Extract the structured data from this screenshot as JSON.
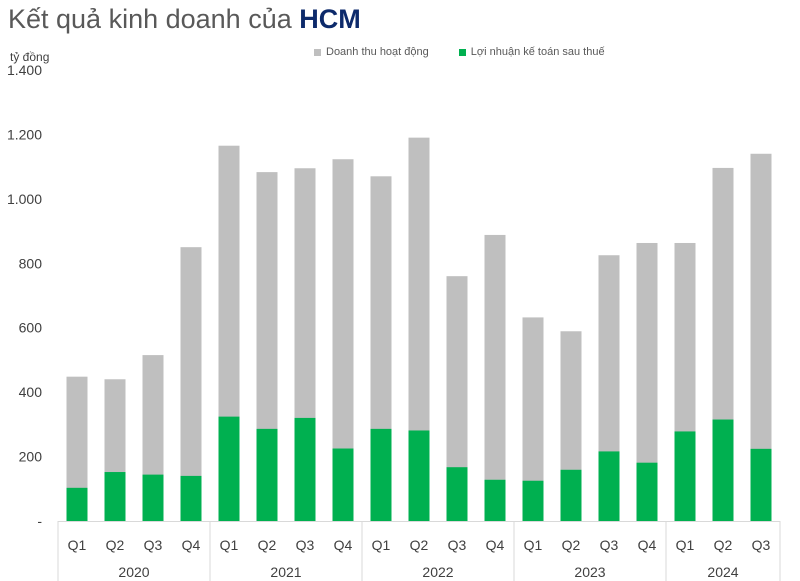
{
  "chart_data": {
    "type": "bar",
    "stacking": "overlap",
    "title_prefix": "Kết quả kinh doanh của ",
    "title_bold": "HCM",
    "unit_label": "tỷ đồng",
    "ylim": [
      0,
      1400
    ],
    "y_ticks": [
      0,
      200,
      400,
      600,
      800,
      1000,
      1200,
      1400
    ],
    "y_tick_labels": [
      "-",
      "200",
      "400",
      "600",
      "800",
      "1.000",
      "1.200",
      "1.400"
    ],
    "categories": [
      "Q1",
      "Q2",
      "Q3",
      "Q4",
      "Q1",
      "Q2",
      "Q3",
      "Q4",
      "Q1",
      "Q2",
      "Q3",
      "Q4",
      "Q1",
      "Q2",
      "Q3",
      "Q4",
      "Q1",
      "Q2",
      "Q3"
    ],
    "groups": [
      {
        "label": "2020",
        "count": 4
      },
      {
        "label": "2021",
        "count": 4
      },
      {
        "label": "2022",
        "count": 4
      },
      {
        "label": "2023",
        "count": 4
      },
      {
        "label": "2024",
        "count": 3
      }
    ],
    "series": [
      {
        "name": "Doanh thu hoạt động",
        "color": "#bfbfbf",
        "values": [
          448,
          440,
          515,
          850,
          1165,
          1083,
          1095,
          1123,
          1070,
          1190,
          760,
          888,
          632,
          589,
          825,
          863,
          863,
          1096,
          1140
        ]
      },
      {
        "name": "Lợi nhuận kế toán sau thuế",
        "color": "#00b050",
        "values": [
          103,
          152,
          144,
          140,
          324,
          286,
          320,
          225,
          286,
          281,
          167,
          128,
          125,
          159,
          216,
          181,
          278,
          315,
          224
        ]
      }
    ],
    "legend_position": "top-center",
    "grid": false
  }
}
